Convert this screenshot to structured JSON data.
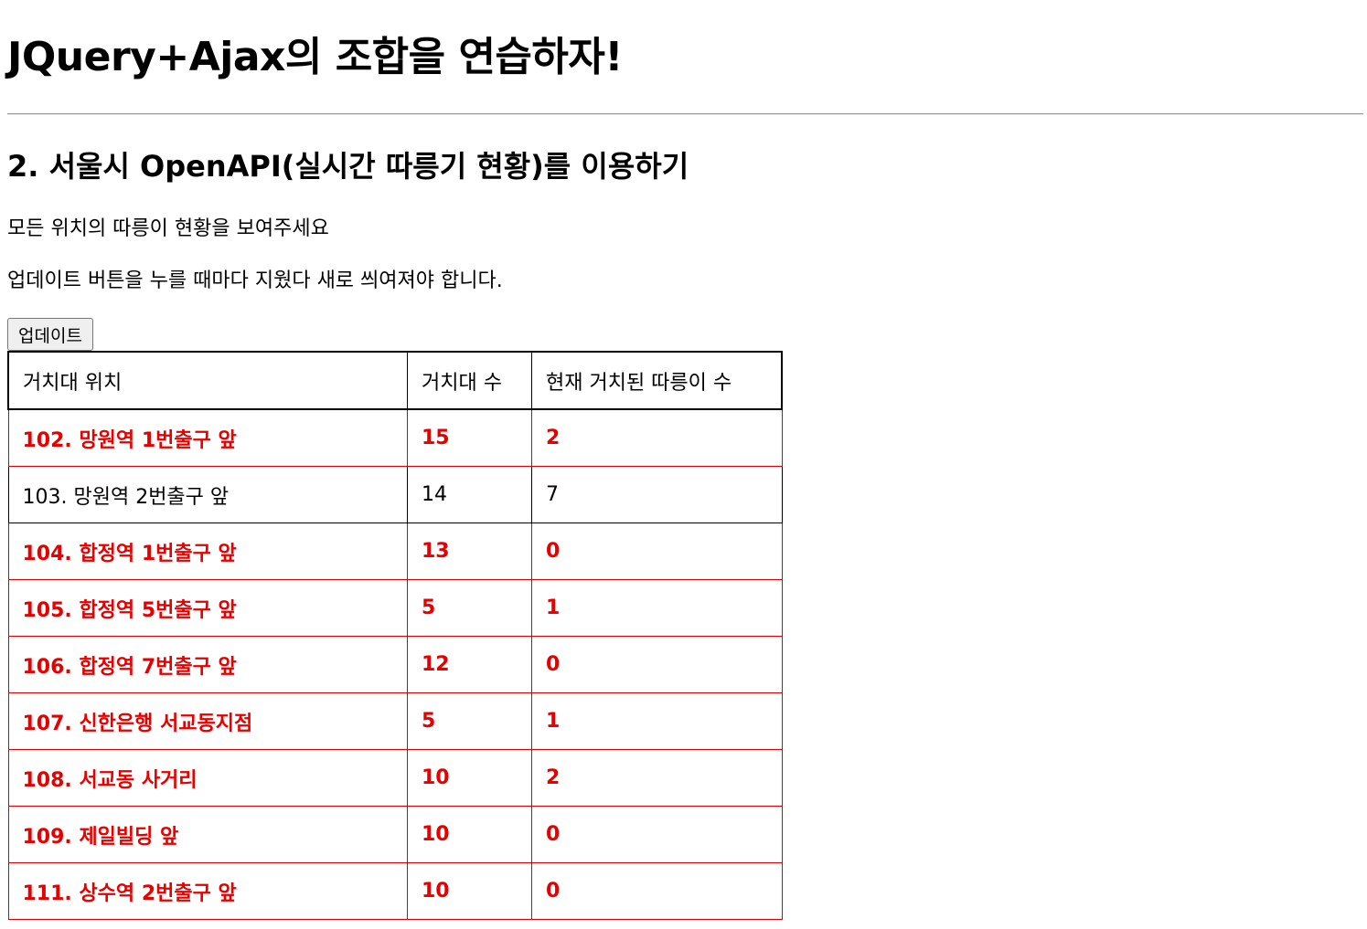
{
  "page": {
    "title": "JQuery+Ajax의 조합을 연습하자!",
    "section_title": "2. 서울시 OpenAPI(실시간 따릉기 현황)를 이용하기",
    "description_1": "모든 위치의 따릉이 현황을 보여주세요",
    "description_2": "업데이트 버튼을 누를 때마다 지웠다 새로 씌여져야 합니다.",
    "update_button_label": "업데이트"
  },
  "table": {
    "headers": [
      "거치대 위치",
      "거치대 수",
      "현재 거치된 따릉이 수"
    ],
    "rows": [
      {
        "location": "102. 망원역 1번출구 앞",
        "racks": "15",
        "bikes": "2",
        "status": "low"
      },
      {
        "location": "103. 망원역 2번출구 앞",
        "racks": "14",
        "bikes": "7",
        "status": "ok"
      },
      {
        "location": "104. 합정역 1번출구 앞",
        "racks": "13",
        "bikes": "0",
        "status": "low"
      },
      {
        "location": "105. 합정역 5번출구 앞",
        "racks": "5",
        "bikes": "1",
        "status": "low"
      },
      {
        "location": "106. 합정역 7번출구 앞",
        "racks": "12",
        "bikes": "0",
        "status": "low"
      },
      {
        "location": "107. 신한은행 서교동지점",
        "racks": "5",
        "bikes": "1",
        "status": "low"
      },
      {
        "location": "108. 서교동 사거리",
        "racks": "10",
        "bikes": "2",
        "status": "low"
      },
      {
        "location": "109. 제일빌딩 앞",
        "racks": "10",
        "bikes": "0",
        "status": "low"
      },
      {
        "location": "111. 상수역 2번출구 앞",
        "racks": "10",
        "bikes": "0",
        "status": "low"
      }
    ]
  },
  "colors": {
    "low_stock_text": "#e60000",
    "normal_text": "#000000"
  }
}
